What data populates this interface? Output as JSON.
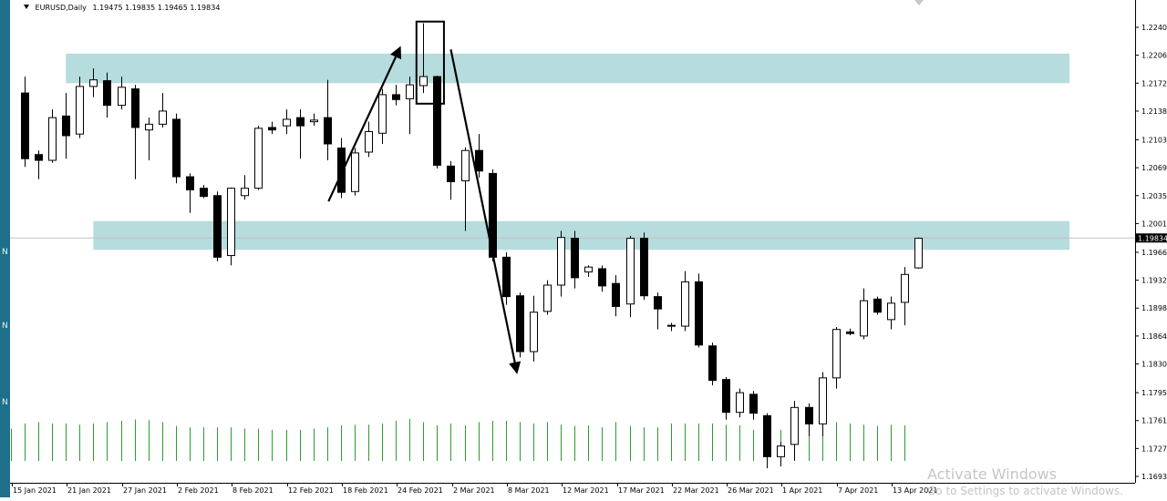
{
  "window": {
    "symbol_label": "EURUSD,Daily",
    "ohlc_label": "1.19475 1.19835 1.19465 1.19834",
    "watermark_title": "Activate Windows",
    "watermark_subtitle": "Go to Settings to activate Windows."
  },
  "colors": {
    "zone_fill": "#b6dcdd",
    "volume": "#2e9a2e",
    "candle_up_fill": "#ffffff",
    "candle_down_fill": "#000000",
    "current_price_bg": "#000000",
    "current_price_text": "#ffffff",
    "strip": "#1e6f8a"
  },
  "chart_data": {
    "type": "candlestick",
    "symbol": "EURUSD",
    "timeframe": "Daily",
    "current_price": 1.19834,
    "y_ticks": [
      "1.22400",
      "1.22060",
      "1.21720",
      "1.21380",
      "1.21030",
      "1.20690",
      "1.20350",
      "1.20010",
      "1.19660",
      "1.19320",
      "1.18980",
      "1.18640",
      "1.18300",
      "1.17950",
      "1.17610",
      "1.17270",
      "1.16930"
    ],
    "ylim": [
      1.1693,
      1.2277
    ],
    "x_tick_labels": [
      "15 Jan 2021",
      "21 Jan 2021",
      "27 Jan 2021",
      "2 Feb 2021",
      "8 Feb 2021",
      "12 Feb 2021",
      "18 Feb 2021",
      "24 Feb 2021",
      "2 Mar 2021",
      "8 Mar 2021",
      "12 Mar 2021",
      "17 Mar 2021",
      "22 Mar 2021",
      "26 Mar 2021",
      "1 Apr 2021",
      "7 Apr 2021",
      "13 Apr 2021"
    ],
    "x_tick_bar_index": [
      0,
      4,
      8,
      12,
      16,
      20,
      24,
      28,
      32,
      36,
      40,
      44,
      48,
      52,
      56,
      60,
      64
    ],
    "candles": [
      {
        "o": 1.216,
        "h": 1.218,
        "l": 1.207,
        "c": 1.208
      },
      {
        "o": 1.2085,
        "h": 1.209,
        "l": 1.2055,
        "c": 1.2078
      },
      {
        "o": 1.2078,
        "h": 1.214,
        "l": 1.2075,
        "c": 1.213
      },
      {
        "o": 1.2132,
        "h": 1.216,
        "l": 1.208,
        "c": 1.2108
      },
      {
        "o": 1.211,
        "h": 1.218,
        "l": 1.2105,
        "c": 1.2168
      },
      {
        "o": 1.2168,
        "h": 1.219,
        "l": 1.2155,
        "c": 1.2176
      },
      {
        "o": 1.2175,
        "h": 1.2185,
        "l": 1.213,
        "c": 1.2145
      },
      {
        "o": 1.2145,
        "h": 1.218,
        "l": 1.214,
        "c": 1.2167
      },
      {
        "o": 1.2165,
        "h": 1.217,
        "l": 1.2055,
        "c": 1.2118
      },
      {
        "o": 1.2115,
        "h": 1.213,
        "l": 1.2078,
        "c": 1.2122
      },
      {
        "o": 1.2122,
        "h": 1.216,
        "l": 1.2118,
        "c": 1.2138
      },
      {
        "o": 1.2128,
        "h": 1.2135,
        "l": 1.205,
        "c": 1.2058
      },
      {
        "o": 1.2058,
        "h": 1.2062,
        "l": 1.2014,
        "c": 1.2042
      },
      {
        "o": 1.2044,
        "h": 1.2048,
        "l": 1.2032,
        "c": 1.2034
      },
      {
        "o": 1.2035,
        "h": 1.204,
        "l": 1.1955,
        "c": 1.196
      },
      {
        "o": 1.1962,
        "h": 1.2045,
        "l": 1.195,
        "c": 1.2044
      },
      {
        "o": 1.2035,
        "h": 1.206,
        "l": 1.203,
        "c": 1.2044
      },
      {
        "o": 1.2044,
        "h": 1.212,
        "l": 1.2042,
        "c": 1.2117
      },
      {
        "o": 1.2118,
        "h": 1.2125,
        "l": 1.211,
        "c": 1.2115
      },
      {
        "o": 1.212,
        "h": 1.214,
        "l": 1.211,
        "c": 1.2128
      },
      {
        "o": 1.213,
        "h": 1.214,
        "l": 1.208,
        "c": 1.212
      },
      {
        "o": 1.2125,
        "h": 1.2135,
        "l": 1.212,
        "c": 1.2127
      },
      {
        "o": 1.213,
        "h": 1.2176,
        "l": 1.2078,
        "c": 1.2098
      },
      {
        "o": 1.2093,
        "h": 1.2105,
        "l": 1.2032,
        "c": 1.2039
      },
      {
        "o": 1.204,
        "h": 1.2093,
        "l": 1.2035,
        "c": 1.2087
      },
      {
        "o": 1.2088,
        "h": 1.2125,
        "l": 1.2082,
        "c": 1.2113
      },
      {
        "o": 1.2111,
        "h": 1.2165,
        "l": 1.2098,
        "c": 1.2158
      },
      {
        "o": 1.2158,
        "h": 1.217,
        "l": 1.2145,
        "c": 1.2152
      },
      {
        "o": 1.2153,
        "h": 1.218,
        "l": 1.211,
        "c": 1.217
      },
      {
        "o": 1.2169,
        "h": 1.2245,
        "l": 1.216,
        "c": 1.218
      },
      {
        "o": 1.218,
        "h": 1.2181,
        "l": 1.2068,
        "c": 1.2072
      },
      {
        "o": 1.2071,
        "h": 1.2077,
        "l": 1.203,
        "c": 1.2052
      },
      {
        "o": 1.2053,
        "h": 1.2094,
        "l": 1.1992,
        "c": 1.209
      },
      {
        "o": 1.209,
        "h": 1.211,
        "l": 1.2057,
        "c": 1.2065
      },
      {
        "o": 1.2062,
        "h": 1.2067,
        "l": 1.1955,
        "c": 1.196
      },
      {
        "o": 1.196,
        "h": 1.1966,
        "l": 1.1902,
        "c": 1.1912
      },
      {
        "o": 1.1913,
        "h": 1.1917,
        "l": 1.1838,
        "c": 1.1845
      },
      {
        "o": 1.1845,
        "h": 1.1913,
        "l": 1.1833,
        "c": 1.1893
      },
      {
        "o": 1.1894,
        "h": 1.1932,
        "l": 1.189,
        "c": 1.1926
      },
      {
        "o": 1.1926,
        "h": 1.1992,
        "l": 1.1912,
        "c": 1.1984
      },
      {
        "o": 1.1983,
        "h": 1.1992,
        "l": 1.1922,
        "c": 1.1935
      },
      {
        "o": 1.1942,
        "h": 1.195,
        "l": 1.1936,
        "c": 1.1948
      },
      {
        "o": 1.1946,
        "h": 1.195,
        "l": 1.1918,
        "c": 1.1925
      },
      {
        "o": 1.1928,
        "h": 1.1938,
        "l": 1.1888,
        "c": 1.19
      },
      {
        "o": 1.1903,
        "h": 1.1986,
        "l": 1.1887,
        "c": 1.1983
      },
      {
        "o": 1.1983,
        "h": 1.199,
        "l": 1.1908,
        "c": 1.1913
      },
      {
        "o": 1.1912,
        "h": 1.1917,
        "l": 1.1872,
        "c": 1.1897
      },
      {
        "o": 1.1877,
        "h": 1.188,
        "l": 1.187,
        "c": 1.1876
      },
      {
        "o": 1.1876,
        "h": 1.1943,
        "l": 1.187,
        "c": 1.193
      },
      {
        "o": 1.193,
        "h": 1.194,
        "l": 1.185,
        "c": 1.1853
      },
      {
        "o": 1.1852,
        "h": 1.1856,
        "l": 1.1804,
        "c": 1.181
      },
      {
        "o": 1.1811,
        "h": 1.1814,
        "l": 1.1762,
        "c": 1.1771
      },
      {
        "o": 1.1771,
        "h": 1.18,
        "l": 1.1765,
        "c": 1.1795
      },
      {
        "o": 1.1793,
        "h": 1.1797,
        "l": 1.1762,
        "c": 1.177
      },
      {
        "o": 1.1767,
        "h": 1.177,
        "l": 1.1703,
        "c": 1.1717
      },
      {
        "o": 1.1717,
        "h": 1.1735,
        "l": 1.1705,
        "c": 1.173
      },
      {
        "o": 1.1732,
        "h": 1.1785,
        "l": 1.1712,
        "c": 1.1777
      },
      {
        "o": 1.1777,
        "h": 1.1782,
        "l": 1.1742,
        "c": 1.1757
      },
      {
        "o": 1.1757,
        "h": 1.182,
        "l": 1.1742,
        "c": 1.1813
      },
      {
        "o": 1.1813,
        "h": 1.1875,
        "l": 1.18,
        "c": 1.1872
      },
      {
        "o": 1.1869,
        "h": 1.1873,
        "l": 1.1865,
        "c": 1.1867
      },
      {
        "o": 1.1864,
        "h": 1.1922,
        "l": 1.186,
        "c": 1.1907
      },
      {
        "o": 1.1909,
        "h": 1.1912,
        "l": 1.189,
        "c": 1.1893
      },
      {
        "o": 1.1884,
        "h": 1.1912,
        "l": 1.1872,
        "c": 1.1904
      },
      {
        "o": 1.1905,
        "h": 1.1948,
        "l": 1.1877,
        "c": 1.1939
      },
      {
        "o": 1.1947,
        "h": 1.1984,
        "l": 1.1946,
        "c": 1.1983
      }
    ],
    "volume": [
      50,
      58,
      60,
      58,
      58,
      56,
      58,
      60,
      62,
      64,
      63,
      60,
      54,
      52,
      52,
      52,
      52,
      50,
      50,
      48,
      48,
      48,
      50,
      52,
      55,
      56,
      56,
      58,
      62,
      65,
      60,
      55,
      58,
      55,
      60,
      62,
      62,
      60,
      58,
      60,
      56,
      54,
      55,
      52,
      60,
      54,
      52,
      52,
      58,
      58,
      58,
      58,
      56,
      55,
      48,
      46,
      48,
      50,
      55,
      60,
      60,
      58,
      56,
      54,
      56,
      55
    ],
    "zones": [
      {
        "top": 1.2208,
        "bottom": 1.2172,
        "from_bar": 3,
        "to_bar": 76
      },
      {
        "top": 1.2004,
        "bottom": 1.1969,
        "from_bar": 5,
        "to_bar": 76
      }
    ],
    "annotations": [
      {
        "kind": "arrow",
        "from": {
          "bar": 22.1,
          "price": 1.2028
        },
        "to": {
          "bar": 27.3,
          "price": 1.2215
        }
      },
      {
        "kind": "arrow",
        "from": {
          "bar": 31.0,
          "price": 1.2213
        },
        "to": {
          "bar": 35.8,
          "price": 1.182
        }
      },
      {
        "kind": "rectangle",
        "bar_from": 28.5,
        "bar_to": 30.5,
        "price_top": 1.2247,
        "price_bottom": 1.2147
      }
    ]
  }
}
